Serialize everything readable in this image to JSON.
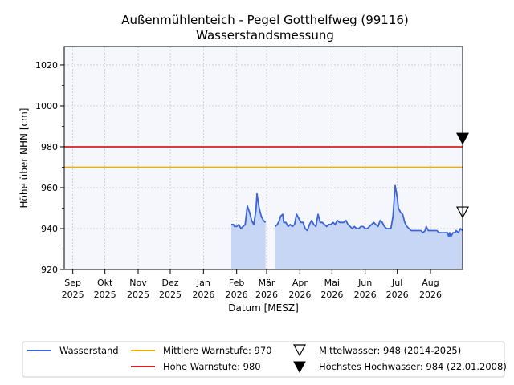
{
  "chart_data": {
    "type": "line",
    "title": "Außenmühlenteich - Pegel Gotthelfweg (99116)",
    "subtitle": "Wasserstandsmessung",
    "xlabel": "Datum [MESZ]",
    "ylabel": "Höhe über NHN [cm]",
    "ylim": [
      920,
      1029
    ],
    "xlim": [
      "2025-08-24",
      "2026-08-31"
    ],
    "yticks": [
      920,
      940,
      960,
      980,
      1000,
      1020
    ],
    "xticks": [
      {
        "date": "2025-09-01",
        "month": "Sep",
        "year": "2025"
      },
      {
        "date": "2025-10-01",
        "month": "Okt",
        "year": "2025"
      },
      {
        "date": "2025-11-01",
        "month": "Nov",
        "year": "2025"
      },
      {
        "date": "2025-12-01",
        "month": "Dez",
        "year": "2025"
      },
      {
        "date": "2026-01-01",
        "month": "Jan",
        "year": "2026"
      },
      {
        "date": "2026-02-01",
        "month": "Feb",
        "year": "2026"
      },
      {
        "date": "2026-03-01",
        "month": "Mär",
        "year": "2026"
      },
      {
        "date": "2026-04-01",
        "month": "Apr",
        "year": "2026"
      },
      {
        "date": "2026-05-01",
        "month": "Mai",
        "year": "2026"
      },
      {
        "date": "2026-06-01",
        "month": "Jun",
        "year": "2026"
      },
      {
        "date": "2026-07-01",
        "month": "Jul",
        "year": "2026"
      },
      {
        "date": "2026-08-01",
        "month": "Aug",
        "year": "2026"
      }
    ],
    "grid": true,
    "series": [
      {
        "name": "Wasserstand",
        "color": "#3a64d8",
        "fill": "#c8d6f5",
        "segments": [
          [
            [
              "2026-01-27",
              942
            ],
            [
              "2026-01-29",
              942
            ],
            [
              "2026-01-30",
              941
            ],
            [
              "2026-02-01",
              941
            ],
            [
              "2026-02-03",
              942
            ],
            [
              "2026-02-05",
              940
            ],
            [
              "2026-02-07",
              941
            ],
            [
              "2026-02-09",
              942
            ],
            [
              "2026-02-11",
              951
            ],
            [
              "2026-02-13",
              948
            ],
            [
              "2026-02-15",
              944
            ],
            [
              "2026-02-17",
              942
            ],
            [
              "2026-02-19",
              949
            ],
            [
              "2026-02-20",
              957
            ],
            [
              "2026-02-22",
              950
            ],
            [
              "2026-02-24",
              946
            ],
            [
              "2026-02-26",
              944
            ],
            [
              "2026-02-28",
              943
            ]
          ],
          [
            [
              "2026-03-09",
              941
            ],
            [
              "2026-03-11",
              942
            ],
            [
              "2026-03-13",
              944
            ],
            [
              "2026-03-14",
              946
            ],
            [
              "2026-03-16",
              947
            ],
            [
              "2026-03-17",
              943
            ],
            [
              "2026-03-19",
              943
            ],
            [
              "2026-03-21",
              941
            ],
            [
              "2026-03-23",
              942
            ],
            [
              "2026-03-25",
              941
            ],
            [
              "2026-03-27",
              942
            ],
            [
              "2026-03-29",
              947
            ],
            [
              "2026-03-31",
              945
            ],
            [
              "2026-04-02",
              943
            ],
            [
              "2026-04-04",
              943
            ],
            [
              "2026-04-06",
              940
            ],
            [
              "2026-04-08",
              939
            ],
            [
              "2026-04-10",
              942
            ],
            [
              "2026-04-12",
              944
            ],
            [
              "2026-04-14",
              942
            ],
            [
              "2026-04-16",
              941
            ],
            [
              "2026-04-18",
              947
            ],
            [
              "2026-04-20",
              943
            ],
            [
              "2026-04-22",
              943
            ],
            [
              "2026-04-24",
              942
            ],
            [
              "2026-04-26",
              941
            ],
            [
              "2026-04-28",
              942
            ],
            [
              "2026-04-30",
              942
            ],
            [
              "2026-05-02",
              943
            ],
            [
              "2026-05-04",
              942
            ],
            [
              "2026-05-06",
              944
            ],
            [
              "2026-05-08",
              943
            ],
            [
              "2026-05-10",
              943
            ],
            [
              "2026-05-12",
              943
            ],
            [
              "2026-05-14",
              944
            ],
            [
              "2026-05-16",
              942
            ],
            [
              "2026-05-18",
              941
            ],
            [
              "2026-05-20",
              940
            ],
            [
              "2026-05-22",
              941
            ],
            [
              "2026-05-24",
              940
            ],
            [
              "2026-05-26",
              940
            ],
            [
              "2026-05-28",
              941
            ],
            [
              "2026-05-30",
              941
            ],
            [
              "2026-06-01",
              940
            ],
            [
              "2026-06-03",
              940
            ],
            [
              "2026-06-05",
              941
            ],
            [
              "2026-06-07",
              942
            ],
            [
              "2026-06-09",
              943
            ],
            [
              "2026-06-11",
              942
            ],
            [
              "2026-06-13",
              941
            ],
            [
              "2026-06-15",
              944
            ],
            [
              "2026-06-17",
              943
            ],
            [
              "2026-06-19",
              941
            ],
            [
              "2026-06-21",
              940
            ],
            [
              "2026-06-23",
              940
            ],
            [
              "2026-06-25",
              940
            ],
            [
              "2026-06-27",
              946
            ],
            [
              "2026-06-29",
              961
            ],
            [
              "2026-07-01",
              955
            ],
            [
              "2026-07-02",
              950
            ],
            [
              "2026-07-04",
              948
            ],
            [
              "2026-07-06",
              947
            ],
            [
              "2026-07-08",
              943
            ],
            [
              "2026-07-10",
              941
            ],
            [
              "2026-07-12",
              940
            ],
            [
              "2026-07-14",
              939
            ],
            [
              "2026-07-17",
              939
            ],
            [
              "2026-07-20",
              939
            ],
            [
              "2026-07-23",
              939
            ],
            [
              "2026-07-25",
              938
            ],
            [
              "2026-07-27",
              939
            ],
            [
              "2026-07-28",
              941
            ],
            [
              "2026-07-30",
              939
            ],
            [
              "2026-08-01",
              939
            ],
            [
              "2026-08-04",
              939
            ],
            [
              "2026-08-07",
              939
            ],
            [
              "2026-08-09",
              938
            ],
            [
              "2026-08-12",
              938
            ],
            [
              "2026-08-15",
              938
            ],
            [
              "2026-08-17",
              938
            ],
            [
              "2026-08-18",
              936
            ],
            [
              "2026-08-19",
              938
            ],
            [
              "2026-08-20",
              936
            ],
            [
              "2026-08-21",
              937
            ],
            [
              "2026-08-22",
              938
            ],
            [
              "2026-08-24",
              938
            ],
            [
              "2026-08-25",
              939
            ],
            [
              "2026-08-27",
              938
            ],
            [
              "2026-08-29",
              940
            ],
            [
              "2026-08-31",
              939
            ]
          ]
        ]
      }
    ],
    "reference_lines": [
      {
        "name": "Mittlere Warnstufe: 970",
        "value": 970,
        "color": "#f0b000"
      },
      {
        "name": "Hohe Warnstufe: 980",
        "value": 980,
        "color": "#d62020"
      }
    ],
    "markers": [
      {
        "name": "Mittelwasser: 948 (2014-2025)",
        "value": 948,
        "style": "open-triangle-down"
      },
      {
        "name": "Höchstes Hochwasser: 984 (22.01.2008)",
        "value": 984,
        "style": "filled-triangle-down"
      }
    ],
    "legend_position": "bottom"
  }
}
